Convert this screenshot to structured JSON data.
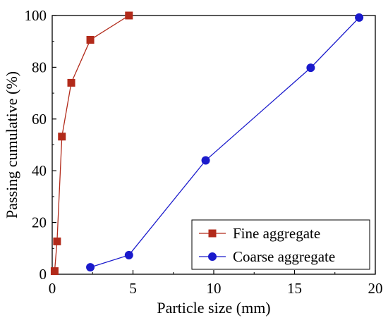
{
  "chart_data": {
    "type": "line",
    "xlabel": "Particle size (mm)",
    "ylabel": "Passing cumulative (%)",
    "xlim": [
      0,
      20
    ],
    "ylim": [
      0,
      100
    ],
    "xticks": [
      0,
      5,
      10,
      15,
      20
    ],
    "yticks": [
      0,
      20,
      40,
      60,
      80,
      100
    ],
    "grid": false,
    "legend_position": "bottom-right",
    "series": [
      {
        "name": "Fine aggregate",
        "color": "#b22a1a",
        "marker": "square",
        "x": [
          0.15,
          0.3,
          0.6,
          1.18,
          2.36,
          4.75
        ],
        "y": [
          1.2,
          12.7,
          53.2,
          74.0,
          90.6,
          100.0
        ]
      },
      {
        "name": "Coarse aggregate",
        "color": "#1a1acc",
        "marker": "circle",
        "x": [
          2.36,
          4.75,
          9.5,
          16,
          19
        ],
        "y": [
          2.7,
          7.4,
          44.0,
          79.8,
          99.2
        ]
      }
    ]
  }
}
